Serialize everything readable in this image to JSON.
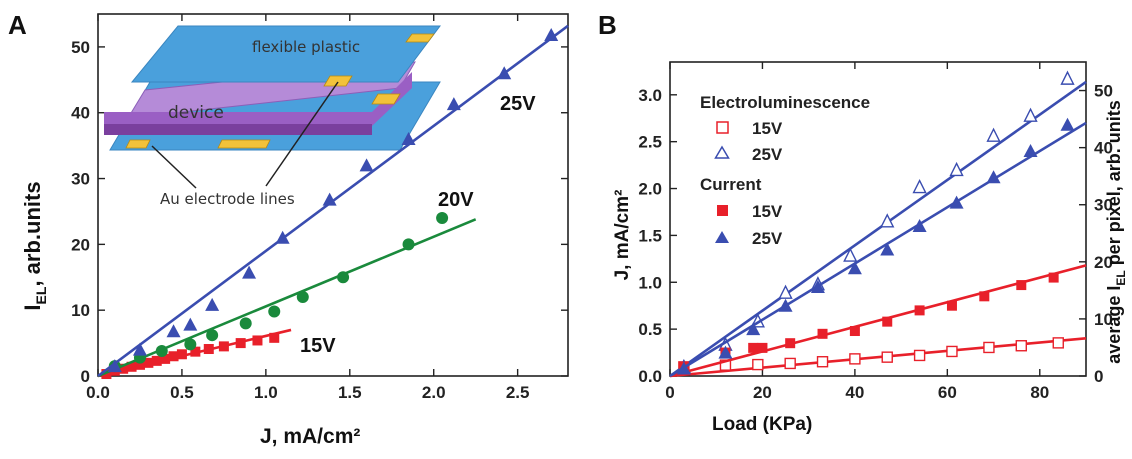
{
  "panels": {
    "a": "A",
    "b": "B"
  },
  "inset": {
    "flexible": "flexible plastic",
    "device": "device",
    "electrode": "Au electrode lines"
  },
  "chart_data": [
    {
      "type": "scatter",
      "panel": "A",
      "xlabel": "J, mA/cm²",
      "ylabel_main": "I",
      "ylabel_sub": "EL",
      "ylabel_rest": ", arb.units",
      "xlim": [
        0,
        2.8
      ],
      "ylim": [
        0,
        55
      ],
      "xticks": [
        "0.0",
        "0.5",
        "1.0",
        "1.5",
        "2.0",
        "2.5"
      ],
      "xtick_values": [
        0,
        0.5,
        1.0,
        1.5,
        2.0,
        2.5
      ],
      "yticks": [
        "0",
        "10",
        "20",
        "30",
        "40",
        "50"
      ],
      "ytick_values": [
        0,
        10,
        20,
        30,
        40,
        50
      ],
      "series": [
        {
          "name": "15V",
          "color": "#e8202a",
          "marker": "square",
          "x": [
            0.05,
            0.1,
            0.15,
            0.2,
            0.25,
            0.3,
            0.35,
            0.4,
            0.45,
            0.5,
            0.58,
            0.66,
            0.75,
            0.85,
            0.95,
            1.05
          ],
          "y": [
            0.3,
            0.8,
            1.1,
            1.4,
            1.7,
            2.0,
            2.3,
            2.6,
            3.0,
            3.3,
            3.7,
            4.1,
            4.5,
            5.0,
            5.4,
            5.8
          ],
          "fit": [
            [
              0,
              0
            ],
            [
              1.15,
              7.0
            ]
          ]
        },
        {
          "name": "20V",
          "color": "#1a8a3c",
          "marker": "circle",
          "x": [
            0.1,
            0.25,
            0.38,
            0.55,
            0.68,
            0.88,
            1.05,
            1.22,
            1.46,
            1.85,
            2.05
          ],
          "y": [
            1.5,
            2.8,
            3.8,
            4.8,
            6.2,
            8.0,
            9.8,
            12.0,
            15.0,
            20.0,
            24.0
          ],
          "fit": [
            [
              0,
              0
            ],
            [
              2.25,
              23.8
            ]
          ]
        },
        {
          "name": "25V",
          "color": "#3a4db0",
          "marker": "triangle",
          "x": [
            0.1,
            0.25,
            0.45,
            0.55,
            0.68,
            0.9,
            1.1,
            1.38,
            1.6,
            1.85,
            2.12,
            2.42,
            2.7
          ],
          "y": [
            1.5,
            4.0,
            6.8,
            7.8,
            10.8,
            15.7,
            21.0,
            26.8,
            32.0,
            36.0,
            41.3,
            46.0,
            51.8
          ],
          "fit": [
            [
              0,
              0
            ],
            [
              2.8,
              53.2
            ]
          ]
        }
      ]
    },
    {
      "type": "scatter",
      "panel": "B",
      "xlabel": "Load (KPa)",
      "ylabel_left": "J, mA/cm²",
      "ylabel_right_pre": "average I",
      "ylabel_right_sub": "EL",
      "ylabel_right_post": " per pixel, arb. units",
      "xlim": [
        0,
        90
      ],
      "ylim_left": [
        0,
        3.35
      ],
      "ylim_right": [
        0,
        55
      ],
      "xticks": [
        "0",
        "20",
        "40",
        "60",
        "80"
      ],
      "xtick_values": [
        0,
        20,
        40,
        60,
        80
      ],
      "yticks_left": [
        "0.0",
        "0.5",
        "1.0",
        "1.5",
        "2.0",
        "2.5",
        "3.0"
      ],
      "ytick_left_values": [
        0,
        0.5,
        1.0,
        1.5,
        2.0,
        2.5,
        3.0
      ],
      "yticks_right": [
        "0",
        "10",
        "20",
        "30",
        "40",
        "50"
      ],
      "ytick_right_values": [
        0,
        10,
        20,
        30,
        40,
        50
      ],
      "legend": {
        "group1": "Electroluminescence",
        "group2": "Current",
        "e15": "15V",
        "e25": "25V",
        "c15": "15V",
        "c25": "25V"
      },
      "series": [
        {
          "name": "Electroluminescence 15V",
          "axis": "right",
          "color": "#e8202a",
          "marker": "open-square",
          "x": [
            3,
            12,
            19,
            26,
            33,
            40,
            47,
            54,
            61,
            69,
            76,
            84
          ],
          "y": [
            1.6,
            1.9,
            2.0,
            2.2,
            2.5,
            3.0,
            3.3,
            3.6,
            4.3,
            5.0,
            5.3,
            5.8
          ],
          "fit": [
            [
              0,
              0
            ],
            [
              90,
              6.6
            ]
          ]
        },
        {
          "name": "Electroluminescence 25V",
          "axis": "right",
          "color": "#3a4db0",
          "marker": "open-triangle",
          "x": [
            3,
            12,
            19,
            25,
            32,
            39,
            47,
            54,
            62,
            70,
            78,
            86
          ],
          "y": [
            1.5,
            5.4,
            9.5,
            14.5,
            16.0,
            21.0,
            27.0,
            33.0,
            36.0,
            42.0,
            45.5,
            52.0
          ],
          "fit": [
            [
              0,
              0
            ],
            [
              90,
              51.5
            ]
          ]
        },
        {
          "name": "Current 15V",
          "axis": "left",
          "color": "#e8202a",
          "marker": "square",
          "x": [
            3,
            12,
            18,
            20,
            26,
            33,
            40,
            47,
            54,
            61,
            68,
            76,
            83
          ],
          "y": [
            0.1,
            0.25,
            0.3,
            0.3,
            0.35,
            0.45,
            0.48,
            0.58,
            0.7,
            0.75,
            0.85,
            0.97,
            1.05
          ],
          "fit": [
            [
              0,
              0
            ],
            [
              90,
              1.18
            ]
          ]
        },
        {
          "name": "Current 25V",
          "axis": "left",
          "color": "#3a4db0",
          "marker": "triangle",
          "x": [
            3,
            12,
            18,
            25,
            32,
            40,
            47,
            54,
            62,
            70,
            78,
            86
          ],
          "y": [
            0.08,
            0.25,
            0.5,
            0.75,
            0.95,
            1.15,
            1.35,
            1.6,
            1.85,
            2.12,
            2.4,
            2.68
          ],
          "fit": [
            [
              0,
              0
            ],
            [
              90,
              2.7
            ]
          ]
        }
      ]
    }
  ]
}
